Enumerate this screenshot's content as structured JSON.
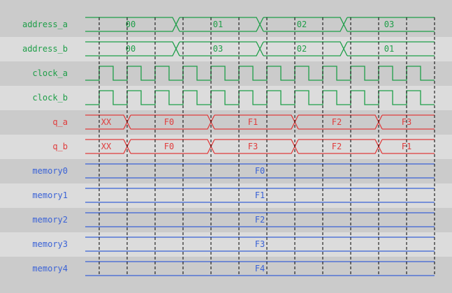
{
  "colors": {
    "band_dark": "#cbcbcb",
    "band_light": "#dcdcdc",
    "green": "#1e9e48",
    "red": "#e03c3c",
    "blue": "#3a62d6",
    "grid": "#000000"
  },
  "time_unit": "clock cycles",
  "grid": {
    "start": 0.5,
    "step": 1,
    "end": 12.5
  },
  "signals": [
    {
      "name": "address_a",
      "kind": "bus",
      "color": "green",
      "bounds": [
        0,
        3.25,
        6.25,
        9.25,
        12.5
      ],
      "values": [
        "00",
        "01",
        "02",
        "03"
      ]
    },
    {
      "name": "address_b",
      "kind": "bus",
      "color": "green",
      "bounds": [
        0,
        3.25,
        6.25,
        9.25,
        12.5
      ],
      "values": [
        "00",
        "03",
        "02",
        "01"
      ]
    },
    {
      "name": "clock_a",
      "kind": "clock",
      "color": "green",
      "first_rise": 0.5,
      "period": 1,
      "cycles": 12
    },
    {
      "name": "clock_b",
      "kind": "clock",
      "color": "green",
      "first_rise": 0.5,
      "period": 1,
      "cycles": 12
    },
    {
      "name": "q_a",
      "kind": "bus",
      "color": "red",
      "bounds": [
        0,
        1.5,
        4.5,
        7.5,
        10.5,
        12.5
      ],
      "values": [
        "XX",
        "F0",
        "F1",
        "F2",
        "F3"
      ]
    },
    {
      "name": "q_b",
      "kind": "bus",
      "color": "red",
      "bounds": [
        0,
        1.5,
        4.5,
        7.5,
        10.5,
        12.5
      ],
      "values": [
        "XX",
        "F0",
        "F3",
        "F2",
        "F1"
      ]
    },
    {
      "name": "memory0",
      "kind": "bus",
      "color": "blue",
      "bounds": [
        0,
        12.5
      ],
      "values": [
        "F0"
      ]
    },
    {
      "name": "memory1",
      "kind": "bus",
      "color": "blue",
      "bounds": [
        0,
        12.5
      ],
      "values": [
        "F1"
      ]
    },
    {
      "name": "memory2",
      "kind": "bus",
      "color": "blue",
      "bounds": [
        0,
        12.5
      ],
      "values": [
        "F2"
      ]
    },
    {
      "name": "memory3",
      "kind": "bus",
      "color": "blue",
      "bounds": [
        0,
        12.5
      ],
      "values": [
        "F3"
      ]
    },
    {
      "name": "memory4",
      "kind": "bus",
      "color": "blue",
      "bounds": [
        0,
        12.5
      ],
      "values": [
        "F4"
      ]
    }
  ]
}
